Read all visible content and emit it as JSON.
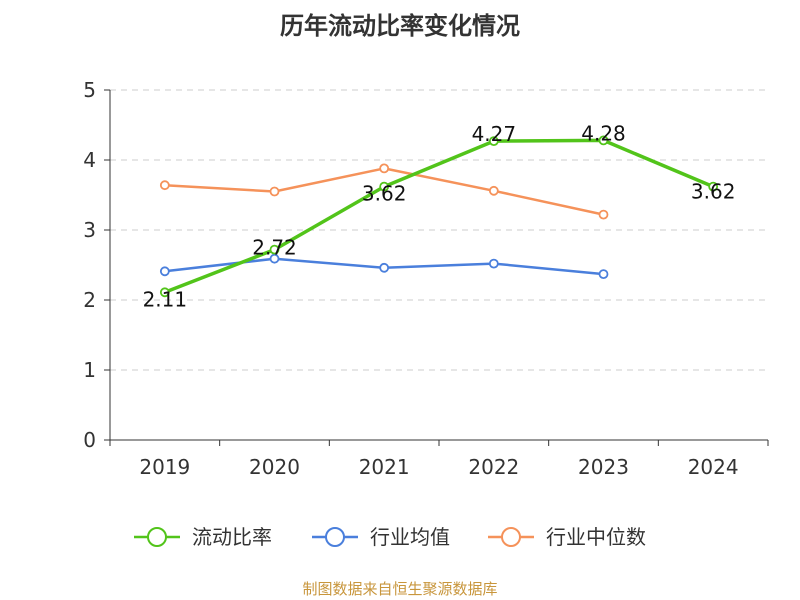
{
  "colors": {
    "axis": "#333333",
    "grid": "#cccccc",
    "text": "#333333",
    "source": "#c8963c"
  },
  "chart_data": {
    "type": "line",
    "title": "历年流动比率变化情况",
    "categories": [
      "2019",
      "2020",
      "2021",
      "2022",
      "2023",
      "2024"
    ],
    "ylim": [
      0,
      5
    ],
    "yticks": [
      "0",
      "1",
      "2",
      "3",
      "4",
      "5"
    ],
    "grid": "horizontal-dashed",
    "legend_position": "bottom-center",
    "series": [
      {
        "name": "流动比率",
        "color": "#52c41a",
        "values": [
          2.11,
          2.72,
          3.62,
          4.27,
          4.28,
          3.62
        ],
        "labels": [
          "2.11",
          "2.72",
          "3.62",
          "4.27",
          "4.28",
          "3.62"
        ],
        "emphasized": true
      },
      {
        "name": "行业均值",
        "color": "#4a7fdc",
        "values": [
          2.41,
          2.59,
          2.46,
          2.52,
          2.37,
          null
        ]
      },
      {
        "name": "行业中位数",
        "color": "#f5925a",
        "values": [
          3.64,
          3.55,
          3.88,
          3.56,
          3.22,
          null
        ]
      }
    ],
    "source": "制图数据来自恒生聚源数据库"
  }
}
